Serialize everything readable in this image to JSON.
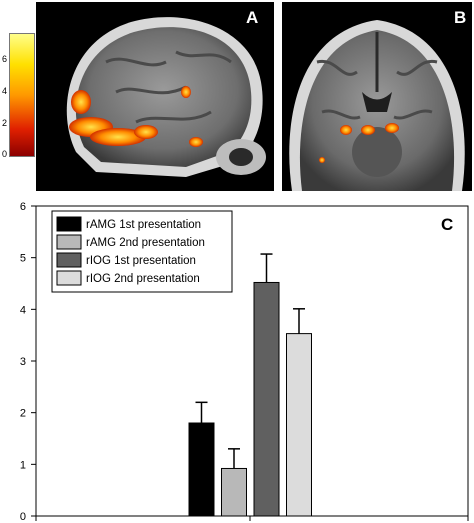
{
  "colorbar": {
    "ticks": [
      "6",
      "4",
      "2",
      "0"
    ],
    "ramp": [
      "#ffff7a",
      "#ffd400",
      "#ff8c00",
      "#e02000",
      "#8b0000"
    ]
  },
  "panels": {
    "a_label": "A",
    "b_label": "B",
    "c_label": "C"
  },
  "chart_data": {
    "type": "bar",
    "title": "",
    "xlabel": "",
    "ylabel": "",
    "ylim": [
      0,
      6
    ],
    "yticks": [
      "0",
      "1",
      "2",
      "3",
      "4",
      "5",
      "6"
    ],
    "grid": false,
    "legend_position": "top-left",
    "series": [
      {
        "name": "rAMG 1st presentation",
        "value": 1.8,
        "error": 0.4,
        "color": "#000000"
      },
      {
        "name": "rAMG 2nd presentation",
        "value": 0.92,
        "error": 0.38,
        "color": "#b8b8b8"
      },
      {
        "name": "rIOG 1st presentation",
        "value": 4.52,
        "error": 0.55,
        "color": "#606060"
      },
      {
        "name": "rIOG 2nd presentation",
        "value": 3.53,
        "error": 0.48,
        "color": "#dcdcdc"
      }
    ]
  }
}
